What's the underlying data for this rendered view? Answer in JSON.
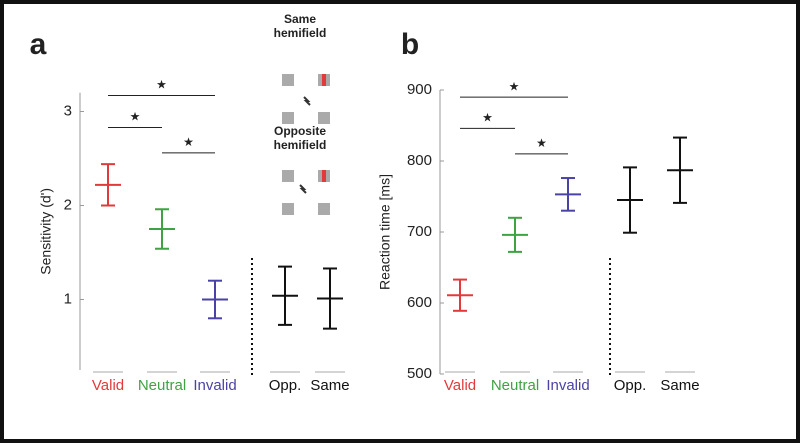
{
  "chart_data": [
    {
      "type": "errorbar",
      "panel_label": "a",
      "ylabel": "Sensitivity (d')",
      "categories": [
        "Valid",
        "Neutral",
        "Invalid",
        "Opp.",
        "Same"
      ],
      "colors": [
        "#e23a3a",
        "#3fa243",
        "#4a43a6",
        "#111111",
        "#111111"
      ],
      "values": [
        2.22,
        1.75,
        1.0,
        1.04,
        1.01
      ],
      "errors": [
        0.22,
        0.21,
        0.2,
        0.31,
        0.32
      ],
      "ylim": [
        0.25,
        3.2
      ],
      "yticks": [
        1,
        2,
        3
      ],
      "comparisons": [
        {
          "label": "★",
          "from": 0,
          "to": 2,
          "y": 3.17
        },
        {
          "label": "★",
          "from": 0,
          "to": 1,
          "y": 2.83
        },
        {
          "label": "★",
          "from": 1,
          "to": 2,
          "y": 2.56
        }
      ],
      "inset": {
        "top_label": "Same hemifield",
        "bottom_label": "Opposite hemifield"
      }
    },
    {
      "type": "errorbar",
      "panel_label": "b",
      "ylabel": "Reaction time [ms]",
      "categories": [
        "Valid",
        "Neutral",
        "Invalid",
        "Opp.",
        "Same"
      ],
      "colors": [
        "#e23a3a",
        "#3fa243",
        "#4a43a6",
        "#111111",
        "#111111"
      ],
      "values": [
        611,
        696,
        753,
        745,
        787
      ],
      "errors": [
        22,
        24,
        23,
        46,
        46
      ],
      "ylim": [
        500,
        900
      ],
      "yticks": [
        500,
        600,
        700,
        800,
        900
      ],
      "comparisons": [
        {
          "label": "★",
          "from": 0,
          "to": 2,
          "y": 890
        },
        {
          "label": "★",
          "from": 0,
          "to": 1,
          "y": 846
        },
        {
          "label": "★",
          "from": 1,
          "to": 2,
          "y": 810
        }
      ]
    }
  ]
}
